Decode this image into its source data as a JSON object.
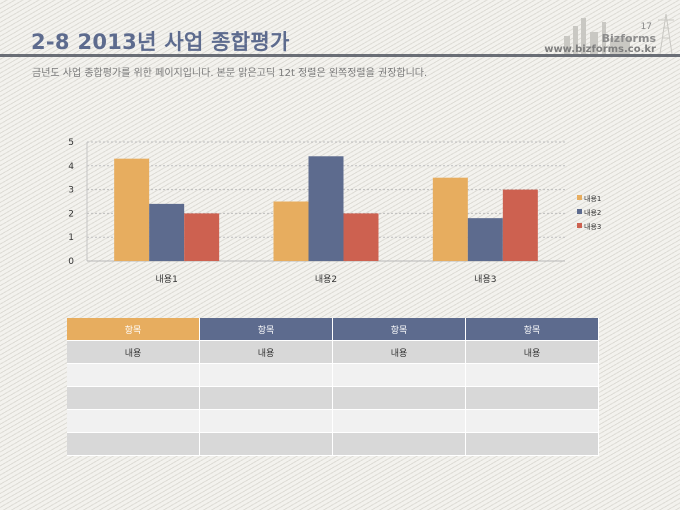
{
  "header": {
    "title": "2-8 2013년 사업 종합평가",
    "subtitle": "금년도 사업 종합평가를 위한 페이지입니다. 본문 맑은고딕 12t 정렬은 왼쪽정렬을 권장합니다.",
    "page_number": "17",
    "brand": "Bizforms",
    "url": "www.bizforms.co.kr"
  },
  "colors": {
    "series1": "#e7ad5f",
    "series2": "#5d6b8e",
    "series3": "#cd6150",
    "title": "#5d6b8e"
  },
  "chart_data": {
    "type": "bar",
    "title": "",
    "xlabel": "",
    "ylabel": "",
    "categories": [
      "내용1",
      "내용2",
      "내용3"
    ],
    "series": [
      {
        "name": "내용1",
        "values": [
          4.3,
          2.5,
          3.5
        ]
      },
      {
        "name": "내용2",
        "values": [
          2.4,
          4.4,
          1.8
        ]
      },
      {
        "name": "내용3",
        "values": [
          2.0,
          2.0,
          3.0
        ]
      }
    ],
    "ylim": [
      0,
      5
    ],
    "yticks": [
      0,
      1,
      2,
      3,
      4,
      5
    ],
    "grid": true,
    "legend": "right"
  },
  "table": {
    "headers": [
      "항목",
      "항목",
      "항목",
      "항목"
    ],
    "rows": [
      [
        "내용",
        "내용",
        "내용",
        "내용"
      ],
      [
        "",
        "",
        "",
        ""
      ],
      [
        "",
        "",
        "",
        ""
      ],
      [
        "",
        "",
        "",
        ""
      ],
      [
        "",
        "",
        "",
        ""
      ]
    ]
  }
}
